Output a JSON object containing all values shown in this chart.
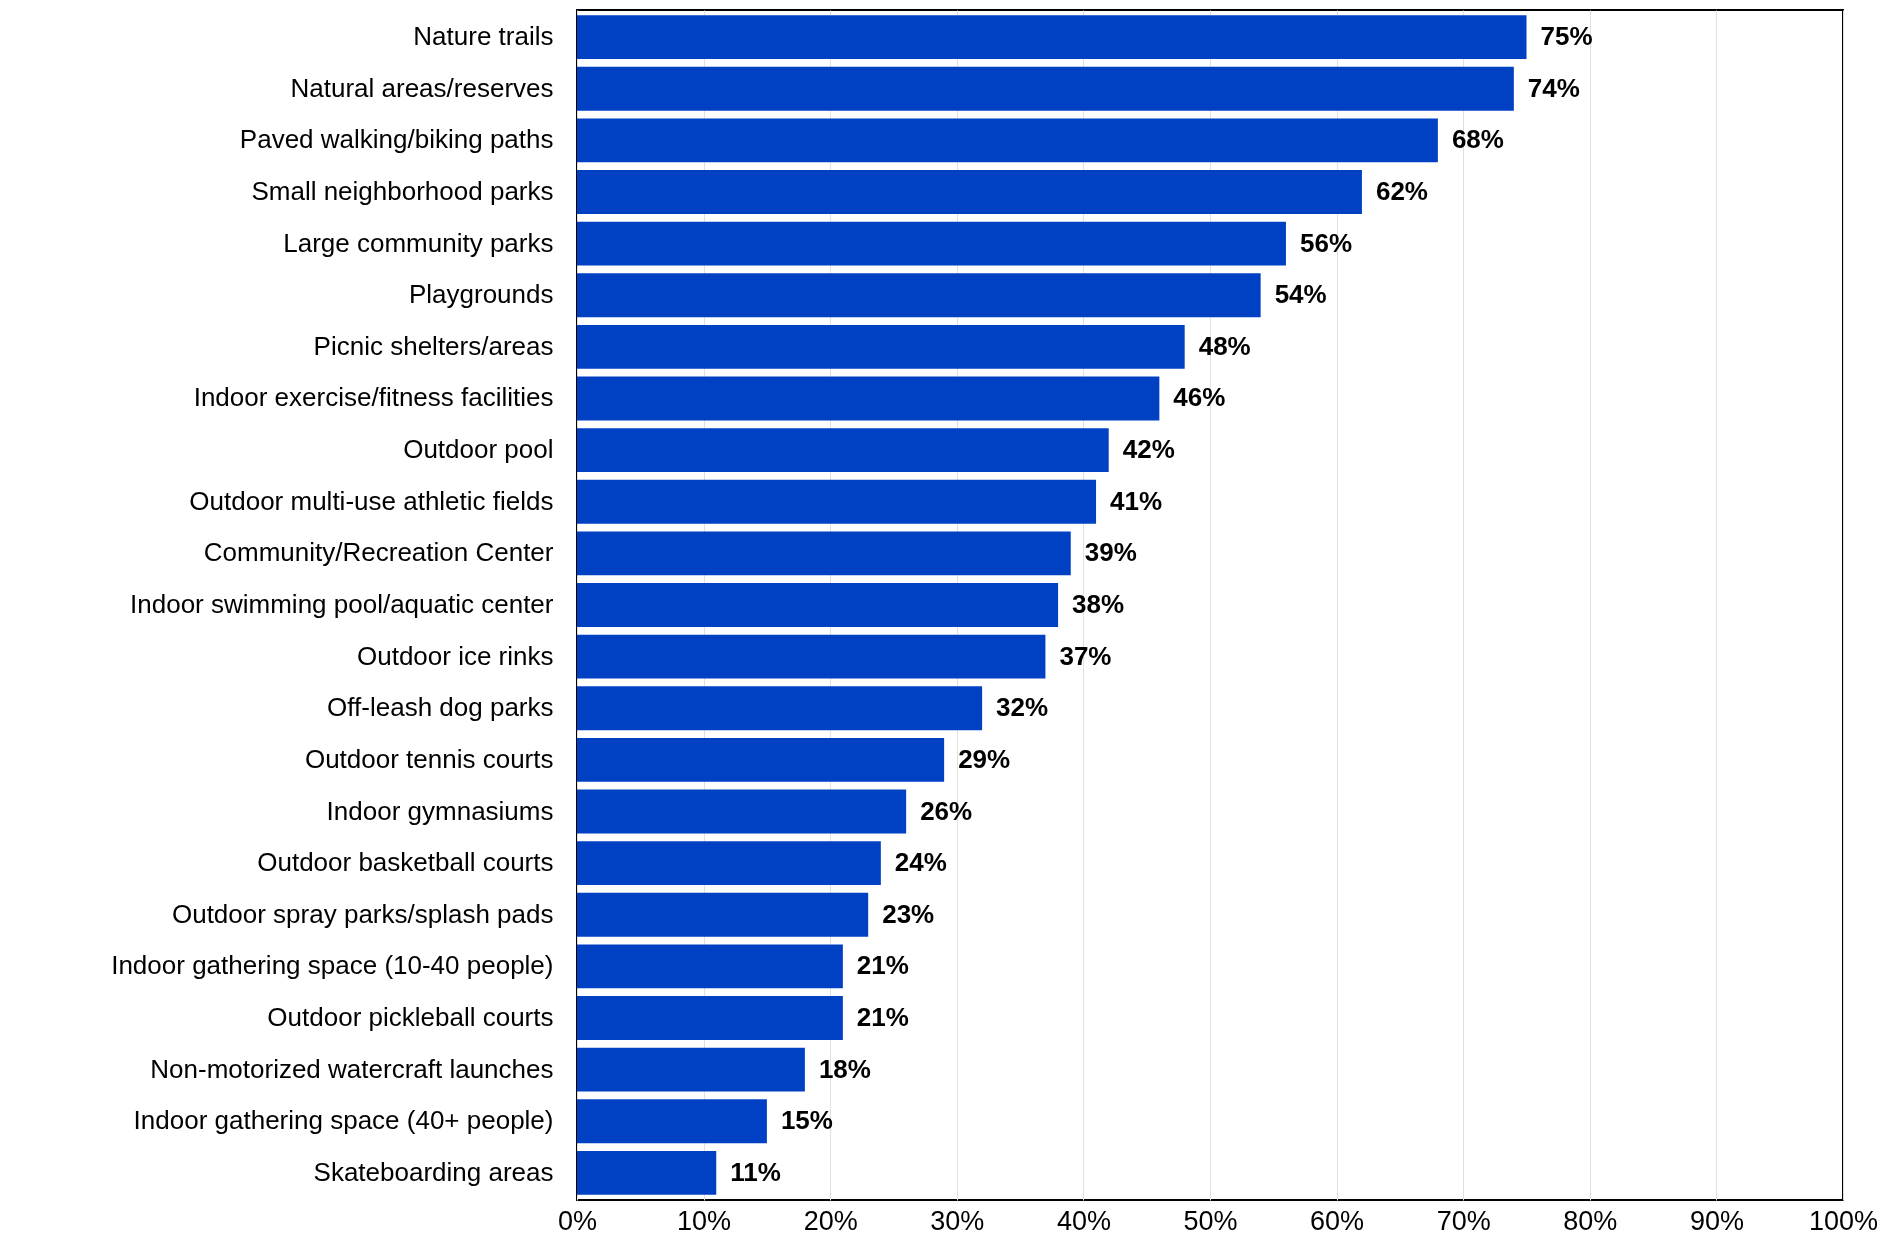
{
  "chart_data": {
    "type": "bar",
    "orientation": "horizontal",
    "categories": [
      "Nature trails",
      "Natural areas/reserves",
      "Paved walking/biking paths",
      "Small neighborhood parks",
      "Large community parks",
      "Playgrounds",
      "Picnic shelters/areas",
      "Indoor exercise/fitness facilities",
      "Outdoor pool",
      "Outdoor multi-use athletic fields",
      "Community/Recreation Center",
      "Indoor swimming pool/aquatic center",
      "Outdoor ice rinks",
      "Off-leash dog parks",
      "Outdoor tennis courts",
      "Indoor gymnasiums",
      "Outdoor basketball courts",
      "Outdoor spray parks/splash pads",
      "Indoor gathering space (10-40 people)",
      "Outdoor pickleball courts",
      "Non-motorized watercraft launches",
      "Indoor gathering space (40+ people)",
      "Skateboarding areas"
    ],
    "values": [
      75,
      74,
      68,
      62,
      56,
      54,
      48,
      46,
      42,
      41,
      39,
      38,
      37,
      32,
      29,
      26,
      24,
      23,
      21,
      21,
      18,
      15,
      11
    ],
    "value_labels": [
      "75%",
      "74%",
      "68%",
      "62%",
      "56%",
      "54%",
      "48%",
      "46%",
      "42%",
      "41%",
      "39%",
      "38%",
      "37%",
      "32%",
      "29%",
      "26%",
      "24%",
      "23%",
      "21%",
      "21%",
      "18%",
      "15%",
      "11%"
    ],
    "color": "#0041c4",
    "xlim": [
      0,
      100
    ],
    "xticks": [
      {
        "value": 0,
        "label": "0%"
      },
      {
        "value": 10,
        "label": "10%"
      },
      {
        "value": 20,
        "label": "20%"
      },
      {
        "value": 30,
        "label": "30%"
      },
      {
        "value": 40,
        "label": "40%"
      },
      {
        "value": 50,
        "label": "50%"
      },
      {
        "value": 60,
        "label": "60%"
      },
      {
        "value": 70,
        "label": "70%"
      },
      {
        "value": 80,
        "label": "80%"
      },
      {
        "value": 90,
        "label": "90%"
      },
      {
        "value": 100,
        "label": "100%"
      }
    ],
    "grid": "x"
  }
}
